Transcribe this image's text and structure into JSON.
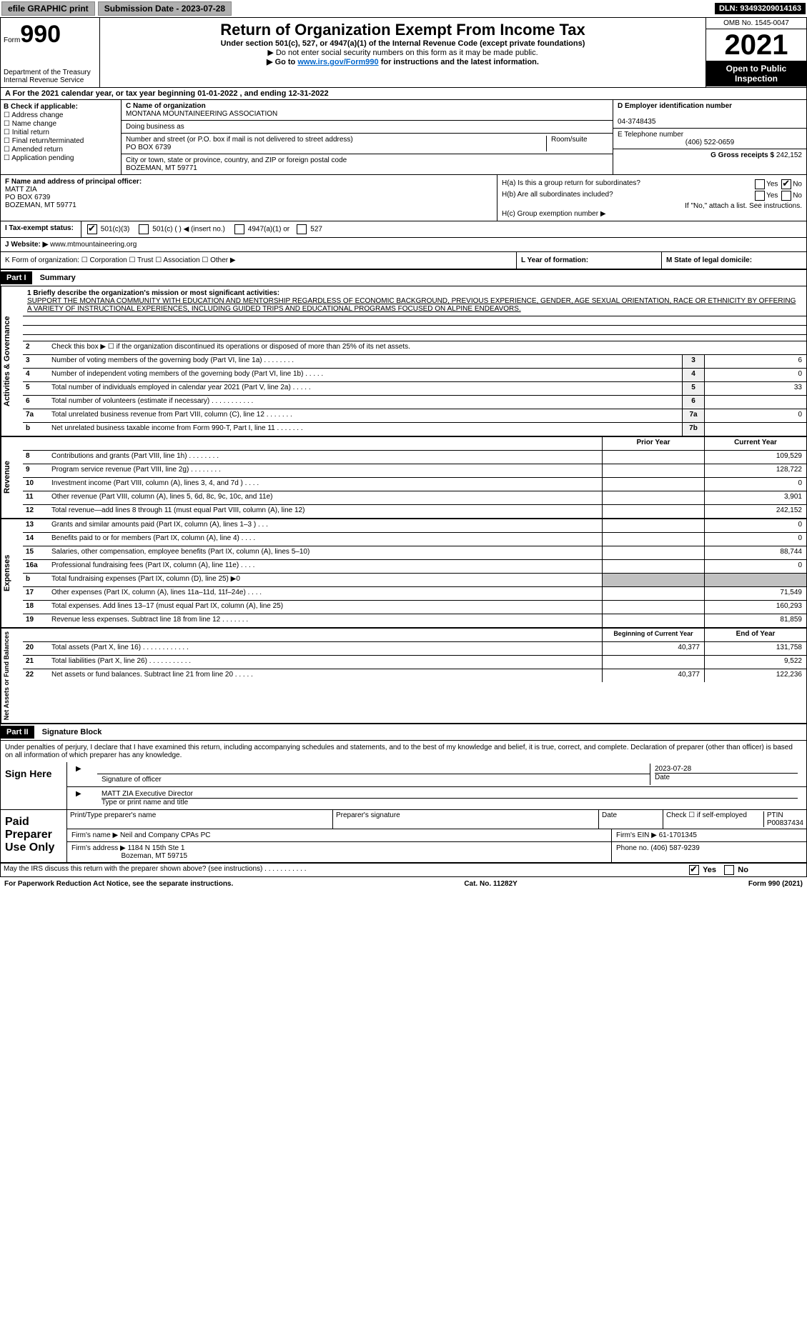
{
  "topbar": {
    "efile": "efile GRAPHIC print",
    "submission_label": "Submission Date - 2023-07-28",
    "dln": "DLN: 93493209014163"
  },
  "header": {
    "form_label": "Form",
    "form_no": "990",
    "title": "Return of Organization Exempt From Income Tax",
    "subtitle": "Under section 501(c), 527, or 4947(a)(1) of the Internal Revenue Code (except private foundations)",
    "ssn_note": "▶ Do not enter social security numbers on this form as it may be made public.",
    "goto_pre": "▶ Go to ",
    "goto_link": "www.irs.gov/Form990",
    "goto_post": " for instructions and the latest information.",
    "dept": "Department of the Treasury",
    "irs": "Internal Revenue Service",
    "omb": "OMB No. 1545-0047",
    "year": "2021",
    "open": "Open to Public Inspection"
  },
  "row_a": "A For the 2021 calendar year, or tax year beginning 01-01-2022   , and ending 12-31-2022",
  "col_b": {
    "label": "B Check if applicable:",
    "items": [
      "Address change",
      "Name change",
      "Initial return",
      "Final return/terminated",
      "Amended return",
      "Application pending"
    ]
  },
  "col_c": {
    "name_label": "C Name of organization",
    "name": "MONTANA MOUNTAINEERING ASSOCIATION",
    "dba": "Doing business as",
    "street_label": "Number and street (or P.O. box if mail is not delivered to street address)",
    "room": "Room/suite",
    "street": "PO BOX 6739",
    "city_label": "City or town, state or province, country, and ZIP or foreign postal code",
    "city": "BOZEMAN, MT  59771"
  },
  "col_d": {
    "ein_label": "D Employer identification number",
    "ein": "04-3748435",
    "phone_label": "E Telephone number",
    "phone": "(406) 522-0659",
    "gross_label": "G Gross receipts $",
    "gross": "242,152"
  },
  "col_f": {
    "label": "F  Name and address of principal officer:",
    "name": "MATT ZIA",
    "addr1": "PO BOX 6739",
    "addr2": "BOZEMAN, MT  59771"
  },
  "col_h": {
    "ha": "H(a)  Is this a group return for subordinates?",
    "hb": "H(b)  Are all subordinates included?",
    "hb_note": "If \"No,\" attach a list. See instructions.",
    "hc": "H(c)  Group exemption number ▶",
    "yes": "Yes",
    "no": "No"
  },
  "row_i": {
    "label": "I  Tax-exempt status:",
    "opts": [
      "501(c)(3)",
      "501(c) (  ) ◀ (insert no.)",
      "4947(a)(1) or",
      "527"
    ]
  },
  "row_j": {
    "label": "J  Website: ▶",
    "val": "www.mtmountaineering.org"
  },
  "row_k": "K Form of organization:   ☐ Corporation  ☐ Trust  ☐ Association  ☐ Other ▶",
  "row_l": "L Year of formation:",
  "row_m": "M State of legal domicile:",
  "part1": {
    "hdr": "Part I",
    "title": "Summary",
    "mission_label": "1  Briefly describe the organization's mission or most significant activities:",
    "mission": "SUPPORT THE MONTANA COMMUNITY WITH EDUCATION AND MENTORSHIP REGARDLESS OF ECONOMIC BACKGROUND, PREVIOUS EXPERIENCE, GENDER, AGE SEXUAL ORIENTATION, RACE OR ETHNICITY BY OFFERING A VARIETY OF INSTRUCTIONAL EXPERIENCES, INCLUDING GUIDED TRIPS AND EDUCATIONAL PROGRAMS FOCUSED ON ALPINE ENDEAVORS.",
    "line2": "Check this box ▶ ☐  if the organization discontinued its operations or disposed of more than 25% of its net assets."
  },
  "gov_tab": "Activities & Governance",
  "rev_tab": "Revenue",
  "exp_tab": "Expenses",
  "net_tab": "Net Assets or Fund Balances",
  "gov_lines": [
    {
      "n": "3",
      "t": "Number of voting members of the governing body (Part VI, line 1a)   .    .    .    .    .    .    .    .",
      "box": "3",
      "v": "6"
    },
    {
      "n": "4",
      "t": "Number of independent voting members of the governing body (Part VI, line 1b)   .    .    .    .    .",
      "box": "4",
      "v": "0"
    },
    {
      "n": "5",
      "t": "Total number of individuals employed in calendar year 2021 (Part V, line 2a)   .    .    .    .    .",
      "box": "5",
      "v": "33"
    },
    {
      "n": "6",
      "t": "Total number of volunteers (estimate if necessary)   .    .    .    .    .    .    .    .    .    .    .",
      "box": "6",
      "v": ""
    },
    {
      "n": "7a",
      "t": "Total unrelated business revenue from Part VIII, column (C), line 12   .    .    .    .    .    .    .",
      "box": "7a",
      "v": "0"
    },
    {
      "n": "b",
      "t": "Net unrelated business taxable income from Form 990-T, Part I, line 11   .    .    .    .    .    .    .",
      "box": "7b",
      "v": ""
    }
  ],
  "col_headers": {
    "prior": "Prior Year",
    "current": "Current Year",
    "begin": "Beginning of Current Year",
    "end": "End of Year"
  },
  "rev_lines": [
    {
      "n": "8",
      "t": "Contributions and grants (Part VIII, line 1h)   .    .    .    .    .    .    .    .",
      "p": "",
      "c": "109,529"
    },
    {
      "n": "9",
      "t": "Program service revenue (Part VIII, line 2g)   .    .    .    .    .    .    .    .",
      "p": "",
      "c": "128,722"
    },
    {
      "n": "10",
      "t": "Investment income (Part VIII, column (A), lines 3, 4, and 7d )   .    .    .    .",
      "p": "",
      "c": "0"
    },
    {
      "n": "11",
      "t": "Other revenue (Part VIII, column (A), lines 5, 6d, 8c, 9c, 10c, and 11e)",
      "p": "",
      "c": "3,901"
    },
    {
      "n": "12",
      "t": "Total revenue—add lines 8 through 11 (must equal Part VIII, column (A), line 12)",
      "p": "",
      "c": "242,152"
    }
  ],
  "exp_lines": [
    {
      "n": "13",
      "t": "Grants and similar amounts paid (Part IX, column (A), lines 1–3 )   .    .    .",
      "p": "",
      "c": "0"
    },
    {
      "n": "14",
      "t": "Benefits paid to or for members (Part IX, column (A), line 4)   .    .    .    .",
      "p": "",
      "c": "0"
    },
    {
      "n": "15",
      "t": "Salaries, other compensation, employee benefits (Part IX, column (A), lines 5–10)",
      "p": "",
      "c": "88,744"
    },
    {
      "n": "16a",
      "t": "Professional fundraising fees (Part IX, column (A), line 11e)   .    .    .    .",
      "p": "",
      "c": "0"
    },
    {
      "n": "b",
      "t": "Total fundraising expenses (Part IX, column (D), line 25) ▶0",
      "p": "gray",
      "c": "gray"
    },
    {
      "n": "17",
      "t": "Other expenses (Part IX, column (A), lines 11a–11d, 11f–24e)   .    .    .    .",
      "p": "",
      "c": "71,549"
    },
    {
      "n": "18",
      "t": "Total expenses. Add lines 13–17 (must equal Part IX, column (A), line 25)",
      "p": "",
      "c": "160,293"
    },
    {
      "n": "19",
      "t": "Revenue less expenses. Subtract line 18 from line 12 .    .    .    .    .    .    .",
      "p": "",
      "c": "81,859"
    }
  ],
  "net_lines": [
    {
      "n": "20",
      "t": "Total assets (Part X, line 16)   .    .    .    .    .    .    .    .    .    .    .    .",
      "p": "40,377",
      "c": "131,758"
    },
    {
      "n": "21",
      "t": "Total liabilities (Part X, line 26)   .    .    .    .    .    .    .    .    .    .    .",
      "p": "",
      "c": "9,522"
    },
    {
      "n": "22",
      "t": "Net assets or fund balances. Subtract line 21 from line 20   .    .    .    .    .",
      "p": "40,377",
      "c": "122,236"
    }
  ],
  "part2": {
    "hdr": "Part II",
    "title": "Signature Block",
    "declare": "Under penalties of perjury, I declare that I have examined this return, including accompanying schedules and statements, and to the best of my knowledge and belief, it is true, correct, and complete. Declaration of preparer (other than officer) is based on all information of which preparer has any knowledge."
  },
  "sign": {
    "label": "Sign Here",
    "sig_officer": "Signature of officer",
    "date": "Date",
    "date_val": "2023-07-28",
    "name": "MATT ZIA  Executive Director",
    "name_label": "Type or print name and title"
  },
  "paid": {
    "label": "Paid Preparer Use Only",
    "h1": "Print/Type preparer's name",
    "h2": "Preparer's signature",
    "h3": "Date",
    "h4a": "Check ☐ if self-employed",
    "h4b": "PTIN",
    "ptin": "P00837434",
    "firm_name_lbl": "Firm's name    ▶",
    "firm_name": "Neil and Company CPAs PC",
    "firm_ein_lbl": "Firm's EIN ▶",
    "firm_ein": "61-1701345",
    "firm_addr_lbl": "Firm's address ▶",
    "firm_addr1": "1184 N 15th Ste 1",
    "firm_addr2": "Bozeman, MT  59715",
    "phone_lbl": "Phone no.",
    "phone": "(406) 587-9239"
  },
  "discuss": "May the IRS discuss this return with the preparer shown above? (see instructions)   .    .    .    .    .    .    .    .    .    .    .",
  "footer": {
    "left": "For Paperwork Reduction Act Notice, see the separate instructions.",
    "mid": "Cat. No. 11282Y",
    "right": "Form 990 (2021)"
  }
}
